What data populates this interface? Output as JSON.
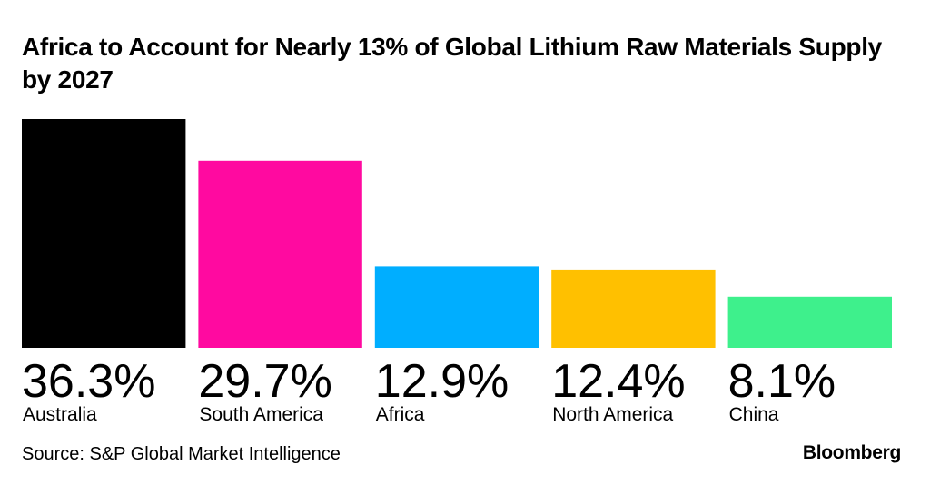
{
  "chart_data": {
    "type": "bar",
    "title": "Africa to Account for Nearly 13% of Global Lithium Raw Materials Supply by 2027",
    "categories": [
      "Australia",
      "South America",
      "Africa",
      "North America",
      "China"
    ],
    "values": [
      36.3,
      29.7,
      12.9,
      12.4,
      8.1
    ],
    "value_labels": [
      "36.3%",
      "29.7%",
      "12.9%",
      "12.4%",
      "8.1%"
    ],
    "colors": [
      "#000000",
      "#ff0aa0",
      "#00aeff",
      "#ffc000",
      "#3ef08c"
    ],
    "unit": "%",
    "ylim": [
      0,
      36.3
    ],
    "grid": false,
    "legend": "none"
  },
  "footer": {
    "source": "Source: S&P Global Market Intelligence",
    "brand": "Bloomberg"
  }
}
